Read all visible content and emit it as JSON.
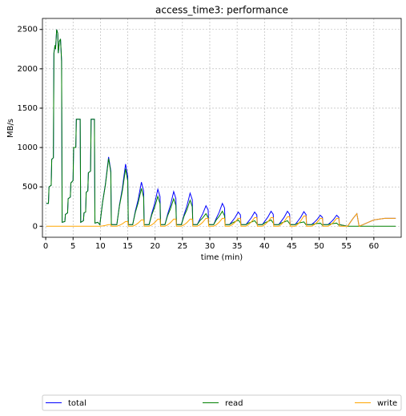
{
  "chart_data": {
    "type": "line",
    "title": "access_time3: performance",
    "xlabel": "time (min)",
    "ylabel": "MB/s",
    "x": [
      0.1,
      0.5,
      0.6,
      1.0,
      1.1,
      1.4,
      1.5,
      1.7,
      1.8,
      2.0,
      2.2,
      2.3,
      2.5,
      2.7,
      2.9,
      3.0,
      3.5,
      3.6,
      4.0,
      4.1,
      4.5,
      4.6,
      5.0,
      5.1,
      5.5,
      5.6,
      6.3,
      6.4,
      6.9,
      7.0,
      7.3,
      7.4,
      7.7,
      7.8,
      8.2,
      8.3,
      8.9,
      9.0,
      9.5,
      9.9,
      10.4,
      10.9,
      11.5,
      11.9,
      12.0,
      13.0,
      13.5,
      14.0,
      14.6,
      15.0,
      15.1,
      15.9,
      16.4,
      16.9,
      17.5,
      17.9,
      18.0,
      18.9,
      19.4,
      19.9,
      20.5,
      20.9,
      21.0,
      21.8,
      22.3,
      22.8,
      23.4,
      23.8,
      23.9,
      24.8,
      25.3,
      25.8,
      26.4,
      26.8,
      26.9,
      27.7,
      28.2,
      28.7,
      29.3,
      29.7,
      29.8,
      30.7,
      31.2,
      31.7,
      32.3,
      32.7,
      32.8,
      33.6,
      34.1,
      34.6,
      35.2,
      35.6,
      35.7,
      36.6,
      37.1,
      37.6,
      38.2,
      38.6,
      38.7,
      39.6,
      40.1,
      40.6,
      41.2,
      41.6,
      41.7,
      42.6,
      43.1,
      43.6,
      44.2,
      44.6,
      44.7,
      45.6,
      46.1,
      46.6,
      47.2,
      47.6,
      47.7,
      48.6,
      49.1,
      49.6,
      50.2,
      50.6,
      50.7,
      51.6,
      52.1,
      52.6,
      53.2,
      53.6,
      53.7,
      55.2,
      55.7,
      56.2,
      56.9,
      57.3,
      58,
      59,
      60,
      61,
      62,
      64
    ],
    "series": [
      {
        "name": "total",
        "color": "#0000ff",
        "values": [
          290,
          290,
          500,
          520,
          850,
          870,
          2200,
          2300,
          2250,
          2500,
          2450,
          2200,
          2350,
          2380,
          2100,
          50,
          60,
          150,
          170,
          350,
          370,
          550,
          580,
          1000,
          1000,
          1360,
          1360,
          50,
          70,
          170,
          180,
          430,
          450,
          680,
          700,
          1360,
          1360,
          40,
          50,
          20,
          308,
          528,
          880,
          704,
          20,
          20,
          277,
          474,
          790,
          632,
          20,
          20,
          196,
          336,
          560,
          448,
          20,
          20,
          165,
          282,
          470,
          376,
          20,
          20,
          154,
          264,
          440,
          352,
          20,
          20,
          147,
          252,
          420,
          336,
          20,
          20,
          91,
          156,
          260,
          208,
          20,
          20,
          102,
          174,
          290,
          232,
          20,
          20,
          63,
          108,
          180,
          144,
          20,
          20,
          63,
          108,
          180,
          144,
          20,
          20,
          67,
          114,
          190,
          152,
          20,
          20,
          67,
          114,
          190,
          152,
          20,
          20,
          65,
          111,
          185,
          148,
          20,
          20,
          49,
          84,
          140,
          112,
          20,
          20,
          49,
          84,
          140,
          112,
          20,
          0,
          50,
          100,
          160,
          0,
          20,
          50,
          80,
          90,
          100,
          100
        ]
      },
      {
        "name": "read",
        "color": "#008000",
        "values": [
          290,
          290,
          500,
          520,
          850,
          870,
          2200,
          2300,
          2250,
          2500,
          2450,
          2200,
          2350,
          2380,
          2100,
          50,
          60,
          150,
          170,
          350,
          370,
          550,
          580,
          1000,
          1000,
          1360,
          1360,
          50,
          70,
          170,
          180,
          430,
          450,
          680,
          700,
          1360,
          1360,
          40,
          50,
          20,
          304,
          518,
          860,
          684,
          20,
          20,
          265,
          444,
          730,
          572,
          20,
          20,
          180,
          296,
          480,
          368,
          20,
          20,
          147,
          237,
          380,
          286,
          20,
          20,
          136,
          219,
          350,
          262,
          20,
          20,
          129,
          207,
          330,
          246,
          20,
          20,
          71,
          106,
          160,
          108,
          20,
          20,
          82,
          124,
          190,
          132,
          20,
          20,
          43,
          58,
          80,
          44,
          20,
          20,
          41,
          53,
          70,
          34,
          20,
          20,
          45,
          59,
          80,
          42,
          20,
          20,
          43,
          54,
          70,
          32,
          20,
          20,
          39,
          46,
          55,
          18,
          20,
          20,
          29,
          34,
          40,
          12,
          20,
          20,
          29,
          34,
          40,
          12,
          20,
          0,
          0,
          0,
          0,
          0,
          0,
          0,
          0,
          0,
          0,
          0
        ]
      },
      {
        "name": "write",
        "color": "#ffa500",
        "values": [
          0,
          0,
          0,
          0,
          0,
          0,
          0,
          0,
          0,
          0,
          0,
          0,
          0,
          0,
          0,
          0,
          0,
          0,
          0,
          0,
          0,
          0,
          0,
          0,
          0,
          0,
          0,
          0,
          0,
          0,
          0,
          0,
          0,
          0,
          0,
          0,
          0,
          0,
          0,
          0,
          4,
          10,
          20,
          20,
          0,
          0,
          12,
          30,
          60,
          60,
          0,
          0,
          16,
          40,
          80,
          80,
          0,
          0,
          18,
          45,
          90,
          90,
          0,
          0,
          18,
          45,
          90,
          90,
          0,
          0,
          18,
          45,
          90,
          90,
          0,
          0,
          20,
          50,
          100,
          100,
          0,
          0,
          20,
          50,
          100,
          100,
          0,
          0,
          20,
          50,
          100,
          100,
          0,
          0,
          22,
          55,
          110,
          110,
          0,
          0,
          22,
          55,
          110,
          110,
          0,
          0,
          24,
          60,
          120,
          120,
          0,
          0,
          26,
          65,
          130,
          130,
          0,
          0,
          20,
          50,
          100,
          100,
          0,
          0,
          20,
          50,
          100,
          100,
          0,
          0,
          50,
          100,
          160,
          0,
          20,
          50,
          80,
          90,
          100,
          100
        ]
      }
    ],
    "xlim": [
      -0.6,
      65
    ],
    "ylim": [
      -140,
      2640
    ],
    "xticks": [
      0,
      5,
      10,
      15,
      20,
      25,
      30,
      35,
      40,
      45,
      50,
      55,
      60
    ],
    "yticks": [
      0,
      500,
      1000,
      1500,
      2000,
      2500
    ],
    "grid": true,
    "legend": "bottom"
  }
}
